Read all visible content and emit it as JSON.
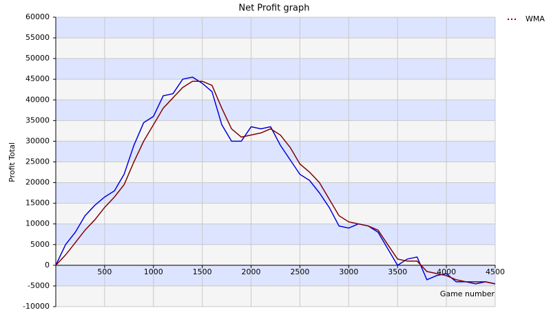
{
  "chart_data": {
    "type": "line",
    "title": "Net Profit graph",
    "x_label": "Game number",
    "y_label": "Profit Total",
    "x": [
      0,
      100,
      200,
      300,
      400,
      500,
      600,
      700,
      800,
      900,
      1000,
      1100,
      1200,
      1300,
      1400,
      1500,
      1600,
      1700,
      1800,
      1900,
      2000,
      2100,
      2200,
      2300,
      2400,
      2500,
      2600,
      2700,
      2800,
      2900,
      3000,
      3100,
      3200,
      3300,
      3400,
      3500,
      3600,
      3700,
      3800,
      3900,
      4000,
      4100,
      4200,
      4300,
      4400,
      4500
    ],
    "series": [
      {
        "color": "#0000dd",
        "values": [
          0,
          5000,
          8000,
          12000,
          14500,
          16500,
          18000,
          22000,
          29000,
          34500,
          36000,
          41000,
          41500,
          45000,
          45500,
          44000,
          42000,
          34000,
          30000,
          30000,
          33500,
          33000,
          33500,
          29000,
          25500,
          22000,
          20500,
          17500,
          14000,
          9500,
          9000,
          10000,
          9500,
          8000,
          4000,
          0,
          1500,
          2000,
          -3500,
          -2500,
          -2000,
          -4000,
          -4000,
          -4500,
          -4000,
          -4500
        ]
      },
      {
        "name": "WMA",
        "color": "#800000",
        "values": [
          0,
          2500,
          5500,
          8500,
          11000,
          14000,
          16500,
          19500,
          25000,
          30000,
          34000,
          38000,
          40500,
          43000,
          44500,
          44500,
          43500,
          38000,
          33000,
          31000,
          31500,
          32000,
          33000,
          31500,
          28500,
          24500,
          22500,
          20000,
          16000,
          12000,
          10500,
          10000,
          9500,
          8500,
          5000,
          1500,
          1000,
          1000,
          -1500,
          -2000,
          -2500,
          -3500,
          -4000,
          -4000,
          -4000,
          -4500
        ]
      }
    ],
    "xlim": [
      0,
      4500
    ],
    "xticks": [
      500,
      1000,
      1500,
      2000,
      2500,
      3000,
      3500,
      4000,
      4500
    ],
    "ylim": [
      -10000,
      60000
    ],
    "yticks": [
      -10000,
      -5000,
      0,
      5000,
      10000,
      15000,
      20000,
      25000,
      30000,
      35000,
      40000,
      45000,
      50000,
      55000,
      60000
    ],
    "grid": true,
    "band_colors": [
      "#f5f5f5",
      "#dde4ff"
    ],
    "legend": "top-right"
  }
}
